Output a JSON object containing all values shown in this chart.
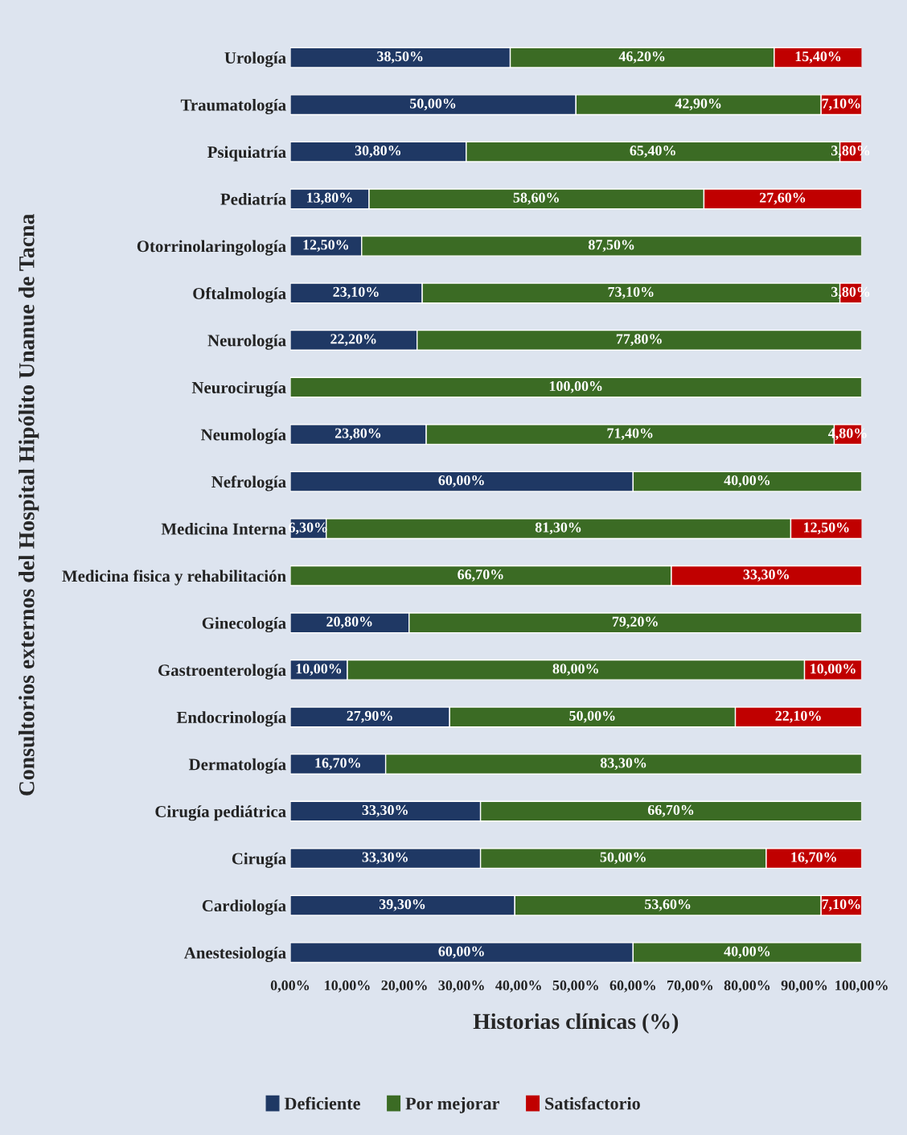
{
  "chart_data": {
    "type": "bar",
    "orientation": "horizontal",
    "stacked": true,
    "xlabel": "Historias clínicas (%)",
    "ylabel": "Consultorios externos del Hospital Hipólito Unanue de Tacna",
    "categories": [
      "Urología",
      "Traumatología",
      "Psiquiatría",
      "Pediatría",
      "Otorrinolaringología",
      "Oftalmología",
      "Neurología",
      "Neurocirugía",
      "Neumología",
      "Nefrología",
      "Medicina Interna",
      "Medicina fisica y rehabilitación",
      "Ginecología",
      "Gastroenterología",
      "Endocrinología",
      "Dermatología",
      "Cirugía pediátrica",
      "Cirugía",
      "Cardiología",
      "Anestesiología"
    ],
    "series": [
      {
        "name": "Deficiente",
        "color": "#1f3864",
        "values": [
          38.5,
          50.0,
          30.8,
          13.8,
          12.5,
          23.1,
          22.2,
          null,
          23.8,
          60.0,
          6.3,
          null,
          20.8,
          10.0,
          27.9,
          16.7,
          33.3,
          33.3,
          39.3,
          60.0
        ],
        "value_labels": [
          "38,50%",
          "50,00%",
          "30,80%",
          "13,80%",
          "12,50%",
          "23,10%",
          "22,20%",
          null,
          "23,80%",
          "60,00%",
          "6,30%",
          null,
          "20,80%",
          "10,00%",
          "27,90%",
          "16,70%",
          "33,30%",
          "33,30%",
          "39,30%",
          "60,00%"
        ]
      },
      {
        "name": "Por mejorar",
        "color": "#3b6b24",
        "values": [
          46.2,
          42.9,
          65.4,
          58.6,
          87.5,
          73.1,
          77.8,
          100.0,
          71.4,
          40.0,
          81.3,
          66.7,
          79.2,
          80.0,
          50.0,
          83.3,
          66.7,
          50.0,
          53.6,
          40.0
        ],
        "value_labels": [
          "46,20%",
          "42,90%",
          "65,40%",
          "58,60%",
          "87,50%",
          "73,10%",
          "77,80%",
          "100,00%",
          "71,40%",
          "40,00%",
          "81,30%",
          "66,70%",
          "79,20%",
          "80,00%",
          "50,00%",
          "83,30%",
          "66,70%",
          "50,00%",
          "53,60%",
          "40,00%"
        ]
      },
      {
        "name": "Satisfactorio",
        "color": "#c00000",
        "values": [
          15.4,
          7.1,
          3.8,
          27.6,
          null,
          3.8,
          null,
          null,
          4.8,
          null,
          12.5,
          33.3,
          null,
          10.0,
          22.1,
          null,
          null,
          16.7,
          7.1,
          null
        ],
        "value_labels": [
          "15,40%",
          "7,10%",
          "3,80%",
          "27,60%",
          null,
          "3,80%",
          null,
          null,
          "4,80%",
          null,
          "12,50%",
          "33,30%",
          null,
          "10,00%",
          "22,10%",
          null,
          null,
          "16,70%",
          "7,10%",
          null
        ]
      }
    ],
    "xlim": [
      0,
      100
    ],
    "xticks": [
      {
        "value": 0,
        "label": "0,00%"
      },
      {
        "value": 10,
        "label": "10,00%"
      },
      {
        "value": 20,
        "label": "20,00%"
      },
      {
        "value": 30,
        "label": "30,00%"
      },
      {
        "value": 40,
        "label": "40,00%"
      },
      {
        "value": 50,
        "label": "50,00%"
      },
      {
        "value": 60,
        "label": "60,00%"
      },
      {
        "value": 70,
        "label": "70,00%"
      },
      {
        "value": 80,
        "label": "80,00%"
      },
      {
        "value": 90,
        "label": "90,00%"
      },
      {
        "value": 100,
        "label": "100,00%"
      }
    ],
    "grid": false,
    "legend": "bottom"
  }
}
